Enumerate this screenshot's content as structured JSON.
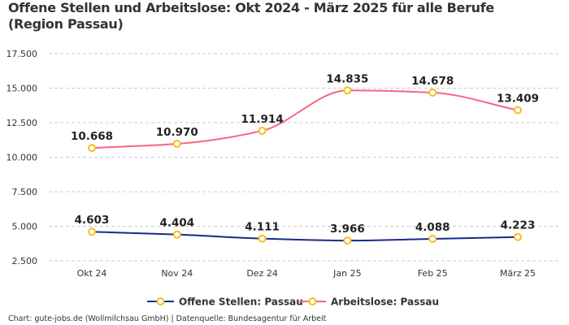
{
  "chart_data": {
    "type": "line",
    "title": "Offene Stellen und Arbeitslose: Okt 2024 - März 2025 für alle Berufe (Region Passau)",
    "categories": [
      "Okt 24",
      "Nov 24",
      "Dez 24",
      "Jan 25",
      "Feb 25",
      "März 25"
    ],
    "series": [
      {
        "name": "Offene Stellen: Passau",
        "values": [
          4603,
          4404,
          4111,
          3966,
          4088,
          4223
        ],
        "labels": [
          "4.603",
          "4.404",
          "4.111",
          "3.966",
          "4.088",
          "4.223"
        ],
        "color": "#1a2a8a"
      },
      {
        "name": "Arbeitslose: Passau",
        "values": [
          10668,
          10970,
          11914,
          14835,
          14678,
          13409
        ],
        "labels": [
          "10.668",
          "10.970",
          "11.914",
          "14.835",
          "14.678",
          "13.409"
        ],
        "color": "#f7657f"
      }
    ],
    "marker_color": "#f5be1e",
    "ylim": [
      2500,
      17500
    ],
    "yticks": [
      2500,
      5000,
      7500,
      10000,
      12500,
      15000,
      17500
    ],
    "ytick_labels": [
      "2.500",
      "5.000",
      "7.500",
      "10.000",
      "12.500",
      "15.000",
      "17.500"
    ],
    "grid": true,
    "legend": "bottom",
    "xlabel": "",
    "ylabel": ""
  },
  "footer": "Chart: gute-jobs.de (Wollmilchsau GmbH) | Datenquelle: Bundesagentur für Arbeit"
}
